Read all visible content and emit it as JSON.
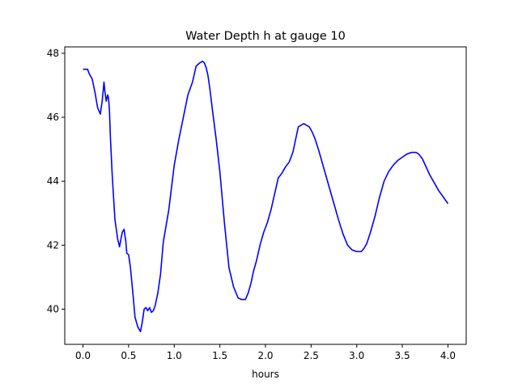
{
  "chart_data": {
    "type": "line",
    "title": "Water Depth h at gauge 10",
    "xlabel": "hours",
    "ylabel": "",
    "xlim": [
      -0.2,
      4.2
    ],
    "ylim": [
      38.9,
      48.2
    ],
    "xticks": [
      0.0,
      0.5,
      1.0,
      1.5,
      2.0,
      2.5,
      3.0,
      3.5,
      4.0
    ],
    "xtick_labels": [
      "0.0",
      "0.5",
      "1.0",
      "1.5",
      "2.0",
      "2.5",
      "3.0",
      "3.5",
      "4.0"
    ],
    "yticks": [
      40,
      42,
      44,
      46,
      48
    ],
    "ytick_labels": [
      "40",
      "42",
      "44",
      "46",
      "48"
    ],
    "grid": false,
    "series": [
      {
        "color": "#0000ff",
        "x": [
          0.0,
          0.05,
          0.07,
          0.1,
          0.13,
          0.16,
          0.19,
          0.21,
          0.23,
          0.24,
          0.255,
          0.27,
          0.28,
          0.29,
          0.3,
          0.32,
          0.35,
          0.38,
          0.4,
          0.43,
          0.45,
          0.47,
          0.48,
          0.5,
          0.52,
          0.55,
          0.57,
          0.6,
          0.63,
          0.65,
          0.67,
          0.69,
          0.71,
          0.73,
          0.75,
          0.77,
          0.79,
          0.82,
          0.85,
          0.88,
          0.91,
          0.94,
          0.97,
          1.0,
          1.05,
          1.1,
          1.15,
          1.2,
          1.24,
          1.28,
          1.31,
          1.33,
          1.35,
          1.37,
          1.39,
          1.42,
          1.46,
          1.5,
          1.55,
          1.6,
          1.65,
          1.7,
          1.74,
          1.78,
          1.81,
          1.84,
          1.87,
          1.9,
          1.94,
          1.98,
          2.02,
          2.06,
          2.1,
          2.14,
          2.18,
          2.22,
          2.26,
          2.3,
          2.33,
          2.36,
          2.39,
          2.42,
          2.45,
          2.48,
          2.51,
          2.54,
          2.58,
          2.62,
          2.66,
          2.7,
          2.75,
          2.8,
          2.85,
          2.9,
          2.95,
          3.0,
          3.05,
          3.08,
          3.11,
          3.15,
          3.2,
          3.25,
          3.3,
          3.35,
          3.4,
          3.45,
          3.5,
          3.55,
          3.6,
          3.65,
          3.68,
          3.72,
          3.76,
          3.8,
          3.85,
          3.9,
          3.95,
          4.0
        ],
        "y": [
          47.5,
          47.5,
          47.35,
          47.2,
          46.8,
          46.3,
          46.1,
          46.5,
          47.1,
          46.8,
          46.5,
          46.7,
          46.6,
          46.2,
          45.4,
          44.2,
          42.8,
          42.2,
          41.95,
          42.4,
          42.5,
          42.1,
          41.75,
          41.7,
          41.3,
          40.4,
          39.75,
          39.45,
          39.3,
          39.6,
          40.0,
          40.05,
          39.95,
          40.05,
          39.9,
          39.95,
          40.1,
          40.5,
          41.1,
          42.1,
          42.6,
          43.1,
          43.8,
          44.5,
          45.3,
          46.0,
          46.7,
          47.1,
          47.6,
          47.7,
          47.75,
          47.7,
          47.55,
          47.3,
          46.9,
          46.2,
          45.3,
          44.3,
          42.7,
          41.3,
          40.7,
          40.35,
          40.3,
          40.3,
          40.5,
          40.8,
          41.2,
          41.5,
          42.0,
          42.4,
          42.7,
          43.1,
          43.6,
          44.1,
          44.25,
          44.45,
          44.6,
          44.9,
          45.3,
          45.7,
          45.75,
          45.8,
          45.75,
          45.7,
          45.55,
          45.35,
          45.0,
          44.6,
          44.2,
          43.8,
          43.3,
          42.8,
          42.35,
          42.0,
          41.85,
          41.8,
          41.8,
          41.9,
          42.05,
          42.4,
          42.9,
          43.5,
          44.0,
          44.3,
          44.5,
          44.65,
          44.75,
          44.85,
          44.9,
          44.9,
          44.85,
          44.7,
          44.45,
          44.2,
          43.95,
          43.7,
          43.5,
          43.3
        ]
      }
    ]
  }
}
